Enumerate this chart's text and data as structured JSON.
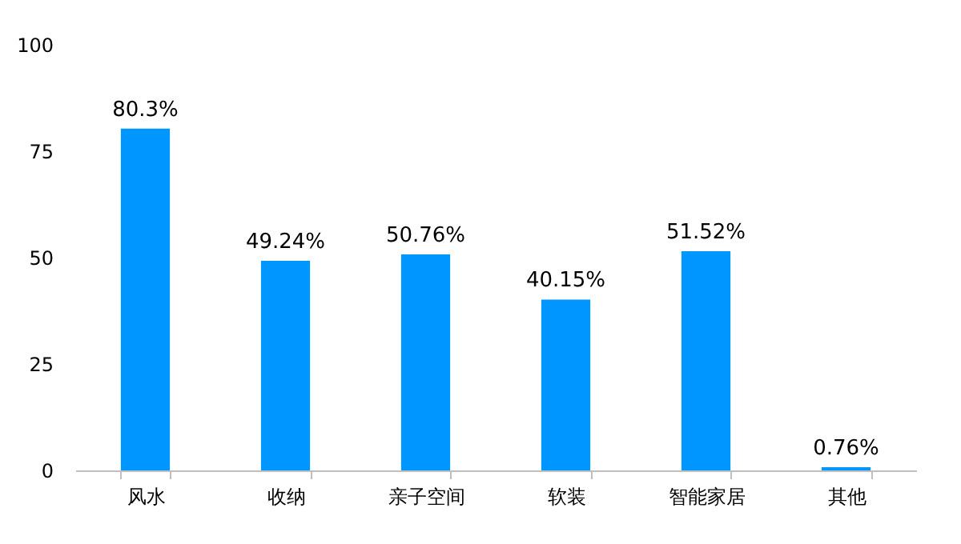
{
  "chart_data": {
    "type": "bar",
    "categories": [
      "风水",
      "收纳",
      "亲子空间",
      "软装",
      "智能家居",
      "其他"
    ],
    "values": [
      80.3,
      49.24,
      50.76,
      40.15,
      51.52,
      0.76
    ],
    "value_labels": [
      "80.3%",
      "49.24%",
      "50.76%",
      "40.15%",
      "51.52%",
      "0.76%"
    ],
    "color": "#0096ff",
    "ylim": [
      0,
      100
    ],
    "yticks": [
      0,
      25,
      50,
      75,
      100
    ],
    "grid": false
  }
}
